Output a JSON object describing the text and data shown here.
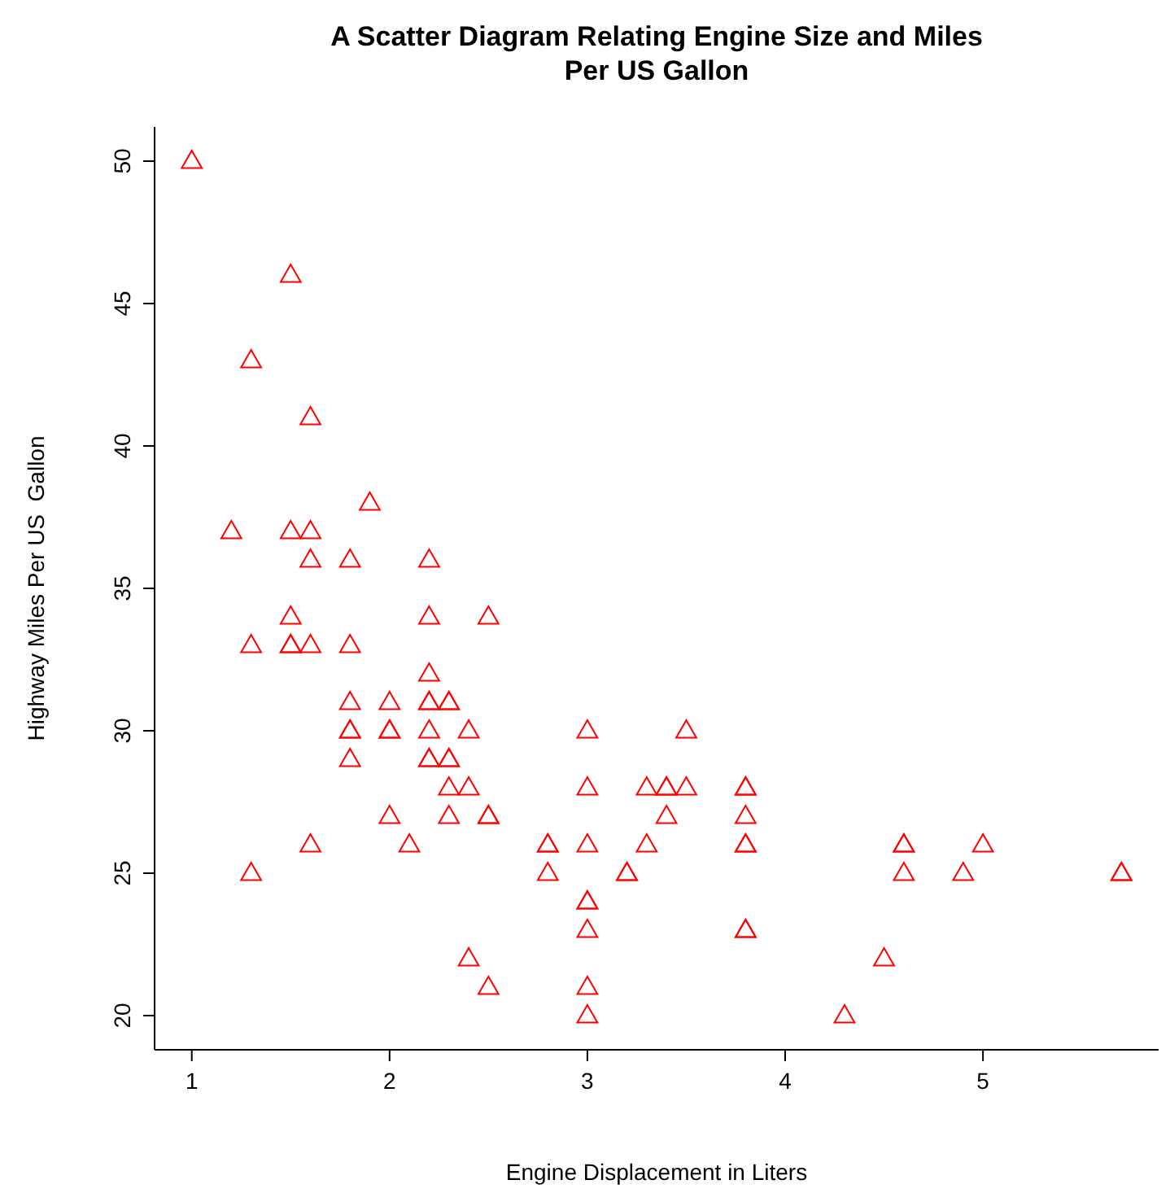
{
  "chart_data": {
    "type": "scatter",
    "title": "A Scatter Diagram Relating Engine Size and Miles Per US Gallon",
    "xlabel": "Engine Displacement in Liters",
    "ylabel": "Highway Miles Per US  Gallon",
    "marker": "triangle",
    "grid": false,
    "xlim": [
      0.812,
      5.888
    ],
    "xticks": [
      1,
      2,
      3,
      4,
      5
    ],
    "ylim": [
      18.8,
      51.2
    ],
    "yticks": [
      20,
      25,
      30,
      35,
      40,
      45,
      50
    ],
    "series": [
      {
        "color": "#ff0000",
        "x": [
          1.0,
          1.5,
          1.3,
          1.6,
          1.9,
          1.2,
          1.5,
          1.6,
          1.6,
          1.8,
          2.2,
          1.5,
          2.2,
          2.5,
          1.3,
          1.5,
          1.5,
          1.6,
          1.8,
          2.2,
          1.8,
          2.0,
          2.2,
          2.2,
          2.3,
          2.3,
          1.8,
          1.8,
          2.0,
          2.0,
          2.2,
          2.4,
          3.0,
          3.5,
          1.8,
          2.2,
          2.2,
          2.3,
          2.3,
          2.3,
          2.4,
          3.0,
          3.3,
          3.4,
          3.4,
          3.5,
          3.8,
          3.8,
          2.0,
          2.3,
          2.5,
          2.5,
          3.4,
          3.8,
          1.6,
          2.1,
          2.8,
          2.8,
          3.0,
          3.3,
          3.8,
          3.8,
          4.6,
          4.6,
          5.0,
          1.3,
          2.8,
          3.2,
          3.2,
          4.6,
          4.9,
          5.7,
          5.7,
          3.0,
          3.0,
          3.0,
          3.8,
          3.8,
          2.4,
          4.5,
          2.5,
          3.0,
          3.0,
          4.3
        ],
        "values": [
          50,
          46,
          43,
          41,
          38,
          37,
          37,
          37,
          36,
          36,
          36,
          34,
          34,
          34,
          33,
          33,
          33,
          33,
          33,
          32,
          31,
          31,
          31,
          31,
          31,
          31,
          30,
          30,
          30,
          30,
          30,
          30,
          30,
          30,
          29,
          29,
          29,
          29,
          29,
          28,
          28,
          28,
          28,
          28,
          28,
          28,
          28,
          28,
          27,
          27,
          27,
          27,
          27,
          27,
          26,
          26,
          26,
          26,
          26,
          26,
          26,
          26,
          26,
          26,
          26,
          25,
          25,
          25,
          25,
          25,
          25,
          25,
          25,
          24,
          24,
          23,
          23,
          23,
          22,
          22,
          21,
          21,
          20,
          20
        ]
      }
    ]
  }
}
